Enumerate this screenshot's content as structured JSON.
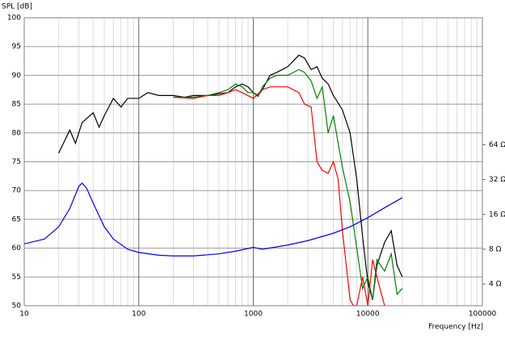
{
  "chart_data": {
    "type": "line",
    "y_label": "SPL [dB]",
    "x_label": "Frequency [Hz]",
    "xscale": "log",
    "grid": true,
    "minor_grid": true,
    "xlim": [
      10,
      100000
    ],
    "xticks": [
      10,
      100,
      1000,
      10000,
      100000
    ],
    "ylim": [
      50,
      100
    ],
    "yticks": [
      50,
      55,
      60,
      65,
      70,
      75,
      80,
      85,
      90,
      95,
      100
    ],
    "y2scale": "log",
    "y2lim": [
      2.6,
      800
    ],
    "y2ticks": [
      {
        "value": 4,
        "label": "4 Ω"
      },
      {
        "value": 8,
        "label": "8 Ω"
      },
      {
        "value": 16,
        "label": "16 Ω"
      },
      {
        "value": 32,
        "label": "32 Ω"
      },
      {
        "value": 64,
        "label": "64 Ω"
      }
    ],
    "series": [
      {
        "color": "#000000",
        "x": [
          20,
          25,
          28,
          32,
          40,
          45,
          50,
          60,
          70,
          80,
          100,
          120,
          150,
          200,
          250,
          300,
          400,
          500,
          600,
          700,
          800,
          900,
          1000,
          1100,
          1200,
          1400,
          1600,
          2000,
          2500,
          2800,
          3200,
          3600,
          4000,
          4500,
          5000,
          6000,
          7000,
          8000,
          9000,
          10000,
          11000,
          12000,
          14000,
          16000,
          18000,
          20000
        ],
        "values": [
          76.5,
          80.5,
          78.2,
          81.8,
          83.5,
          81,
          83,
          86,
          84.5,
          86,
          86,
          87,
          86.5,
          86.5,
          86.2,
          86.5,
          86.5,
          86.8,
          87,
          88,
          88.5,
          88,
          87,
          86.5,
          87.5,
          90,
          90.5,
          91.5,
          93.5,
          93,
          91,
          91.5,
          89.5,
          88.5,
          86.5,
          84,
          80,
          72,
          62,
          54,
          51,
          57,
          61,
          63,
          57,
          55
        ]
      },
      {
        "color": "#008000",
        "x": [
          200,
          300,
          400,
          500,
          600,
          700,
          800,
          900,
          1000,
          1100,
          1200,
          1400,
          1600,
          2000,
          2500,
          2800,
          3200,
          3600,
          4000,
          4500,
          5000,
          6000,
          7000,
          8000,
          9000,
          10000,
          11000,
          12000,
          14000,
          16000,
          18000,
          20000
        ],
        "values": [
          86.2,
          86.2,
          86.5,
          87,
          87.5,
          88.5,
          88,
          87,
          87,
          86.3,
          88,
          89.5,
          90,
          90,
          91,
          90.5,
          89,
          86,
          88,
          80,
          83,
          74,
          68,
          60,
          53,
          55,
          51,
          58,
          56,
          59,
          52,
          53
        ]
      },
      {
        "color": "#ff0000",
        "x": [
          200,
          300,
          400,
          500,
          600,
          700,
          800,
          1000,
          1200,
          1400,
          1600,
          2000,
          2500,
          2800,
          3200,
          3600,
          4000,
          4500,
          5000,
          5500,
          6000,
          7000,
          7500,
          8000,
          9000,
          10000,
          11000,
          12000,
          14000
        ],
        "values": [
          86.2,
          86,
          86.5,
          86.5,
          87,
          87.5,
          87,
          86,
          87.5,
          88,
          88,
          88,
          87,
          85,
          84.5,
          75,
          73.5,
          73,
          75,
          72,
          63,
          51,
          50,
          50,
          55,
          50,
          58,
          55,
          50
        ]
      },
      {
        "color": "#0000ff",
        "axis": "y2",
        "x": [
          10,
          15,
          20,
          25,
          30,
          32,
          35,
          40,
          50,
          60,
          80,
          100,
          150,
          200,
          300,
          500,
          700,
          1000,
          1200,
          2000,
          3000,
          5000,
          7000,
          10000,
          15000,
          20000
        ],
        "values": [
          8.9,
          9.8,
          12.5,
          18,
          28,
          29.8,
          27,
          20,
          12.5,
          9.8,
          8,
          7.5,
          7.1,
          7.0,
          7.0,
          7.3,
          7.7,
          8.3,
          8.0,
          8.7,
          9.5,
          11,
          12.5,
          15,
          19,
          22.3
        ]
      }
    ]
  }
}
